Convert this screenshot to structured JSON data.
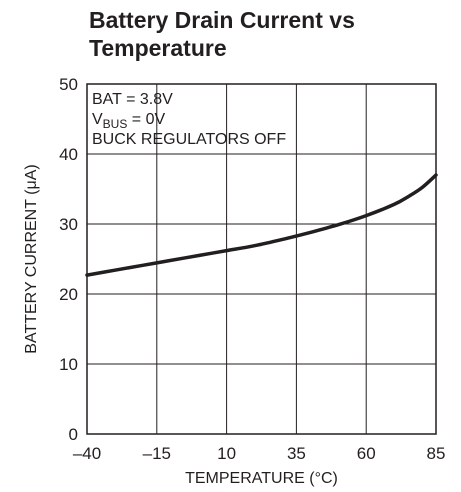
{
  "chart_data": {
    "type": "line",
    "title_lines": [
      "Battery Drain Current vs",
      "Temperature"
    ],
    "xlabel": "TEMPERATURE (°C)",
    "ylabel": "BATTERY CURRENT (μA)",
    "xlim": [
      -40,
      85
    ],
    "ylim": [
      0,
      50
    ],
    "x_ticks": [
      -40,
      -15,
      10,
      35,
      60,
      85
    ],
    "x_tick_labels": [
      "–40",
      "–15",
      "10",
      "35",
      "60",
      "85"
    ],
    "y_ticks": [
      0,
      10,
      20,
      30,
      40,
      50
    ],
    "y_tick_labels": [
      "0",
      "10",
      "20",
      "30",
      "40",
      "50"
    ],
    "grid": true,
    "annotation": {
      "line1": "BAT = 3.8V",
      "line2_main": "V",
      "line2_sub": "BUS",
      "line2_rest": " = 0V",
      "line3": "BUCK REGULATORS OFF"
    },
    "series": [
      {
        "x": [
          -40,
          -30,
          -20,
          -10,
          0,
          10,
          20,
          30,
          40,
          50,
          60,
          70,
          75,
          80,
          85
        ],
        "y": [
          22.7,
          23.4,
          24.1,
          24.8,
          25.5,
          26.2,
          26.9,
          27.8,
          28.8,
          29.9,
          31.2,
          32.8,
          33.9,
          35.2,
          37.0
        ]
      }
    ]
  }
}
